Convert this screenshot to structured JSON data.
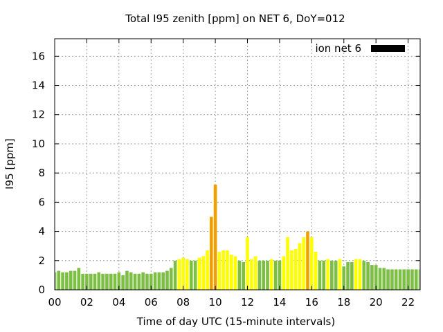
{
  "chart_data": {
    "type": "bar",
    "title": "Total I95 zenith [ppm] on NET 6, DoY=012",
    "xlabel": "Time of day UTC (15-minute intervals)",
    "ylabel": "I95 [ppm]",
    "xlim": [
      0,
      22.75
    ],
    "ylim": [
      0,
      17.2
    ],
    "x_ticks": [
      "00",
      "02",
      "04",
      "06",
      "08",
      "10",
      "12",
      "14",
      "16",
      "18",
      "20",
      "22"
    ],
    "y_ticks": [
      "0",
      "2",
      "4",
      "6",
      "8",
      "10",
      "12",
      "14",
      "16"
    ],
    "grid": true,
    "legend": {
      "position": "top-right",
      "entries": [
        {
          "label": "ion net 6",
          "color": "#000000"
        }
      ]
    },
    "colors": {
      "low": "#7cbf44",
      "medium": "#ffff00",
      "high": "#f0a000"
    },
    "bar_width_hours": 0.2,
    "series": [
      {
        "x": [
          0,
          0.25,
          0.5,
          0.75,
          1.0,
          1.25,
          1.5,
          1.75,
          2.0,
          2.25,
          2.5,
          2.75,
          3.0,
          3.25,
          3.5,
          3.75,
          4.0,
          4.25,
          4.5,
          4.75,
          5.0,
          5.25,
          5.5,
          5.75,
          6.0,
          6.25,
          6.5,
          6.75,
          7.0,
          7.25,
          7.5,
          7.75,
          8.0,
          8.25,
          8.5,
          8.75,
          9.0,
          9.25,
          9.5,
          9.75,
          10.0,
          10.25,
          10.5,
          10.75,
          11.0,
          11.25,
          11.5,
          11.75,
          12.0,
          12.25,
          12.5,
          12.75,
          13.0,
          13.25,
          13.5,
          13.75,
          14.0,
          14.25,
          14.5,
          14.75,
          15.0,
          15.25,
          15.5,
          15.75,
          16.0,
          16.25,
          16.5,
          16.75,
          17.0,
          17.25,
          17.5,
          17.75,
          18.0,
          18.25,
          18.5,
          18.75,
          19.0,
          19.25,
          19.5,
          19.75,
          20.0,
          20.25,
          20.5,
          20.75,
          21.0,
          21.25,
          21.5,
          21.75,
          22.0,
          22.25,
          22.5,
          22.75
        ],
        "values": [
          1.2,
          1.3,
          1.2,
          1.2,
          1.3,
          1.3,
          1.5,
          1.1,
          1.1,
          1.1,
          1.1,
          1.2,
          1.1,
          1.1,
          1.1,
          1.1,
          1.2,
          1.0,
          1.3,
          1.2,
          1.1,
          1.1,
          1.2,
          1.1,
          1.1,
          1.2,
          1.2,
          1.2,
          1.3,
          1.5,
          2.0,
          2.1,
          2.2,
          2.1,
          2.0,
          2.0,
          2.2,
          2.3,
          2.7,
          5.0,
          7.2,
          2.6,
          2.7,
          2.7,
          2.4,
          2.3,
          2.0,
          1.9,
          3.6,
          2.1,
          2.3,
          2.0,
          2.0,
          2.0,
          2.1,
          2.0,
          2.0,
          2.3,
          3.6,
          2.7,
          2.8,
          3.2,
          3.6,
          4.0,
          3.6,
          2.6,
          2.0,
          2.0,
          2.1,
          2.0,
          2.0,
          2.1,
          1.6,
          1.9,
          1.9,
          2.1,
          2.1,
          2.0,
          1.9,
          1.7,
          1.7,
          1.5,
          1.5,
          1.4,
          1.4,
          1.4,
          1.4,
          1.4,
          1.4,
          1.4,
          1.4,
          1.4
        ]
      }
    ]
  }
}
